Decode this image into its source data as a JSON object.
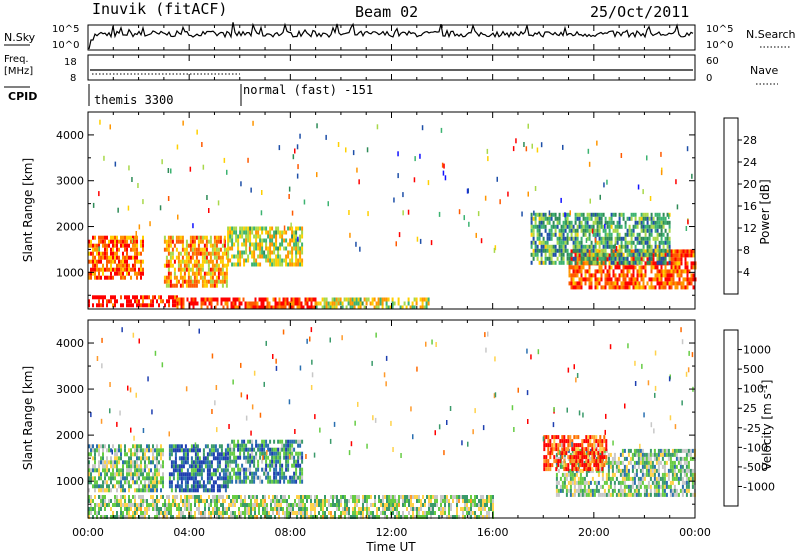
{
  "header": {
    "station": "Inuvik (fitACF)",
    "beam": "Beam 02",
    "date": "25/Oct/2011"
  },
  "panels": {
    "nsky_label": "N.Sky",
    "nsearch_label": "N.Search",
    "freq_label": "Freq.",
    "freq_unit": "[MHz]",
    "nave_label": "Nave",
    "cpid_label": "CPID",
    "left_ticks_top": [
      "10^5",
      "10^0"
    ],
    "right_ticks_top": [
      "10^5",
      "10^0"
    ],
    "left_ticks_freq": [
      "18",
      "8"
    ],
    "right_ticks_freq": [
      "60",
      "0"
    ],
    "cpid_segments": [
      {
        "start_hour": 0,
        "label": "themis 3300"
      },
      {
        "start_hour": 6,
        "label": "normal (fast) -151"
      }
    ]
  },
  "chart_data": [
    {
      "type": "heatmap",
      "name": "power",
      "ylabel": "Slant Range [km]",
      "xlim": [
        0,
        24
      ],
      "ylim": [
        200,
        4500
      ],
      "yticks": [
        "1000",
        "2000",
        "3000",
        "4000"
      ],
      "colorbar_label": "Power [dB]",
      "colorbar_ticks": [
        "28",
        "24",
        "20",
        "16",
        "12",
        "8",
        "4"
      ],
      "colorbar_colors": [
        "#ff0000",
        "#ff5a00",
        "#ff9600",
        "#ffd000",
        "#a8d84a",
        "#3cb371",
        "#2e8b57",
        "#1e4fa8",
        "#1010ff"
      ],
      "regions_hours_km": [
        {
          "x": [
            0.0,
            3.5
          ],
          "y": [
            250,
            500
          ],
          "level": 0.95
        },
        {
          "x": [
            3.5,
            9.0
          ],
          "y": [
            250,
            450
          ],
          "level": 0.9
        },
        {
          "x": [
            9.0,
            13.5
          ],
          "y": [
            250,
            450
          ],
          "level": 0.55
        },
        {
          "x": [
            0.0,
            2.2
          ],
          "y": [
            900,
            1800
          ],
          "level": 0.8
        },
        {
          "x": [
            3.0,
            5.5
          ],
          "y": [
            700,
            1800
          ],
          "level": 0.7
        },
        {
          "x": [
            5.5,
            8.5
          ],
          "y": [
            1200,
            2000
          ],
          "level": 0.55
        },
        {
          "x": [
            19.0,
            24.0
          ],
          "y": [
            700,
            1500
          ],
          "level": 0.85
        },
        {
          "x": [
            17.5,
            23.0
          ],
          "y": [
            1200,
            2300
          ],
          "level": 0.35
        }
      ]
    },
    {
      "type": "heatmap",
      "name": "velocity",
      "ylabel": "Slant Range [km]",
      "xlabel": "Time UT",
      "xlim": [
        0,
        24
      ],
      "ylim": [
        200,
        4500
      ],
      "yticks": [
        "1000",
        "2000",
        "3000",
        "4000"
      ],
      "xticks": [
        "00:00",
        "04:00",
        "08:00",
        "12:00",
        "16:00",
        "20:00",
        "00:00"
      ],
      "colorbar_label": "Velocity [m s^-1]",
      "colorbar_ticks": [
        "1000",
        "500",
        "100",
        "25",
        "-25",
        "-100",
        "-500",
        "-1000"
      ],
      "colorbar_colors": [
        "#1e3fb0",
        "#2a6fb0",
        "#3a9a6a",
        "#66cc44",
        "#c8c8c8",
        "#ffd24a",
        "#ff9a2a",
        "#ff6a00",
        "#ff0000"
      ],
      "regions_hours_km": [
        {
          "x": [
            0.0,
            3.0
          ],
          "y": [
            800,
            1800
          ],
          "level": 0.6
        },
        {
          "x": [
            3.2,
            5.5
          ],
          "y": [
            800,
            1800
          ],
          "level": 0.85
        },
        {
          "x": [
            5.5,
            8.5
          ],
          "y": [
            1000,
            1900
          ],
          "level": 0.75
        },
        {
          "x": [
            0.0,
            16.0
          ],
          "y": [
            250,
            700
          ],
          "level": 0.55
        },
        {
          "x": [
            18.5,
            24.0
          ],
          "y": [
            700,
            1700
          ],
          "level": 0.6
        },
        {
          "x": [
            18.0,
            20.5
          ],
          "y": [
            1300,
            2000
          ],
          "level": 0.15
        }
      ]
    }
  ]
}
